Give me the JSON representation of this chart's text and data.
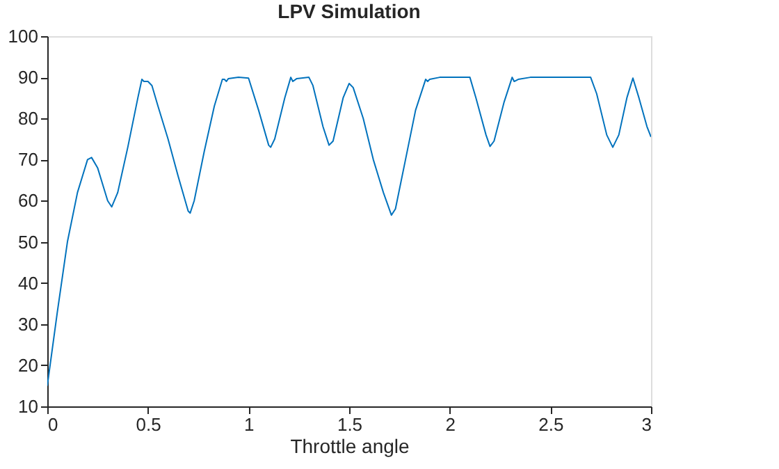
{
  "chart_data": {
    "type": "line",
    "title": "LPV Simulation",
    "xlabel": "Throttle angle",
    "xlim": [
      0,
      3
    ],
    "xticks": [
      0,
      0.5,
      1,
      1.5,
      2,
      2.5,
      3
    ],
    "ylim": [
      10,
      100
    ],
    "yticks": [
      10,
      20,
      30,
      40,
      50,
      60,
      70,
      80,
      90,
      100
    ],
    "grid": false,
    "marker": "none",
    "line_style": "solid",
    "series": [
      {
        "color": "#0072bd",
        "x": [
          0,
          0.05,
          0.1,
          0.15,
          0.2,
          0.22,
          0.25,
          0.3,
          0.32,
          0.35,
          0.4,
          0.45,
          0.47,
          0.48,
          0.5,
          0.52,
          0.55,
          0.6,
          0.65,
          0.7,
          0.71,
          0.73,
          0.78,
          0.83,
          0.87,
          0.88,
          0.89,
          0.9,
          0.95,
          1.0,
          1.05,
          1.1,
          1.11,
          1.13,
          1.18,
          1.21,
          1.22,
          1.24,
          1.3,
          1.32,
          1.37,
          1.4,
          1.42,
          1.47,
          1.5,
          1.52,
          1.57,
          1.62,
          1.67,
          1.71,
          1.73,
          1.78,
          1.83,
          1.88,
          1.89,
          1.9,
          1.95,
          2.1,
          2.13,
          2.18,
          2.2,
          2.22,
          2.27,
          2.31,
          2.32,
          2.34,
          2.4,
          2.7,
          2.73,
          2.78,
          2.81,
          2.84,
          2.88,
          2.91,
          2.94,
          2.98,
          3.0
        ],
        "values": [
          15,
          33,
          50,
          62,
          70,
          70.5,
          68,
          60,
          58.5,
          62,
          73,
          85,
          89.5,
          89,
          89,
          88,
          83,
          75,
          66,
          57.5,
          57,
          60,
          72,
          83,
          89.5,
          89.5,
          89,
          89.7,
          90,
          89.8,
          82,
          73.5,
          73,
          75,
          85,
          90,
          89,
          89.7,
          90,
          88,
          78,
          73.5,
          74.5,
          85,
          88.5,
          87.5,
          80,
          70,
          62,
          56.5,
          58,
          70,
          82,
          89.5,
          89,
          89.5,
          90,
          90,
          85,
          76,
          73.2,
          74.5,
          84,
          90,
          89,
          89.5,
          90,
          90,
          86,
          76,
          73,
          76,
          85,
          89.8,
          85,
          78,
          75.5
        ]
      }
    ]
  }
}
